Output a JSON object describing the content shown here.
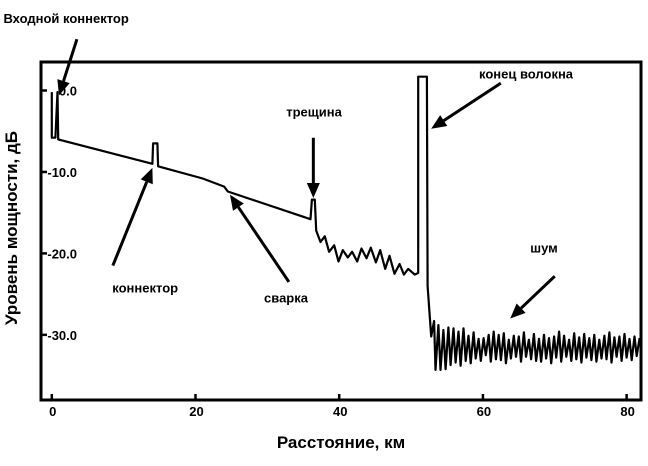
{
  "chart_data": {
    "type": "line",
    "xlabel": "Расстояние, км",
    "ylabel": "Уровень мощности, дБ",
    "xlim": [
      -1.5,
      82
    ],
    "ylim": [
      -38,
      3.5
    ],
    "x_ticks": [
      {
        "value": 0,
        "label": "0"
      },
      {
        "value": 20,
        "label": "20"
      },
      {
        "value": 40,
        "label": "40"
      },
      {
        "value": 60,
        "label": "60"
      },
      {
        "value": 80,
        "label": "80"
      }
    ],
    "y_ticks": [
      {
        "value": 0,
        "label": "0.0"
      },
      {
        "value": -10,
        "label": "-10.0"
      },
      {
        "value": -20,
        "label": "-20.0"
      },
      {
        "value": -30,
        "label": "-30.0"
      }
    ],
    "series": [
      {
        "points": [
          [
            0.0,
            -0.2
          ],
          [
            0.0,
            -5.8
          ],
          [
            0.5,
            -5.8
          ],
          [
            0.8,
            -0.2
          ],
          [
            0.9,
            -6.0
          ],
          [
            14.0,
            -9.0
          ],
          [
            14.1,
            -6.5
          ],
          [
            14.7,
            -6.5
          ],
          [
            14.8,
            -9.3
          ],
          [
            21.0,
            -10.8
          ],
          [
            24.0,
            -11.8
          ],
          [
            24.5,
            -12.4
          ],
          [
            36.0,
            -15.8
          ],
          [
            36.2,
            -13.4
          ],
          [
            36.6,
            -13.4
          ],
          [
            36.8,
            -17.2
          ],
          [
            37.4,
            -18.6
          ],
          [
            38.0,
            -17.9
          ],
          [
            38.6,
            -19.8
          ],
          [
            39.3,
            -19.0
          ],
          [
            39.9,
            -21.0
          ],
          [
            40.5,
            -19.6
          ],
          [
            41.2,
            -20.5
          ],
          [
            41.8,
            -19.8
          ],
          [
            42.5,
            -21.0
          ],
          [
            43.1,
            -19.4
          ],
          [
            43.8,
            -20.6
          ],
          [
            44.4,
            -19.3
          ],
          [
            45.1,
            -21.1
          ],
          [
            45.7,
            -19.6
          ],
          [
            46.4,
            -21.9
          ],
          [
            47.0,
            -20.3
          ],
          [
            47.7,
            -22.5
          ],
          [
            48.4,
            -21.3
          ],
          [
            49.0,
            -22.6
          ],
          [
            49.6,
            -21.9
          ],
          [
            50.5,
            -22.6
          ],
          [
            51.0,
            -22.4
          ],
          [
            51.0,
            1.7
          ],
          [
            52.2,
            1.7
          ],
          [
            52.3,
            -24.0
          ],
          [
            52.8,
            -30.2
          ],
          [
            53.2,
            -28.3
          ],
          [
            53.4,
            -34.3
          ],
          [
            53.8,
            -28.8
          ],
          [
            54.1,
            -34.3
          ],
          [
            54.5,
            -29.4
          ],
          [
            54.8,
            -34.2
          ],
          [
            55.2,
            -29.1
          ],
          [
            55.5,
            -33.7
          ],
          [
            55.9,
            -29.2
          ],
          [
            56.2,
            -33.4
          ],
          [
            56.6,
            -29.6
          ],
          [
            56.9,
            -33.8
          ],
          [
            57.3,
            -29.2
          ],
          [
            57.6,
            -33.2
          ],
          [
            58.0,
            -30.1
          ],
          [
            58.3,
            -33.5
          ],
          [
            58.7,
            -29.7
          ],
          [
            59.0,
            -32.9
          ],
          [
            59.4,
            -30.5
          ],
          [
            59.7,
            -33.2
          ],
          [
            60.1,
            -30.4
          ],
          [
            60.4,
            -32.5
          ],
          [
            60.8,
            -30.0
          ],
          [
            61.1,
            -33.3
          ],
          [
            61.5,
            -29.6
          ],
          [
            61.8,
            -33.0
          ],
          [
            62.2,
            -30.0
          ],
          [
            62.5,
            -33.1
          ],
          [
            62.9,
            -29.8
          ],
          [
            63.2,
            -33.5
          ],
          [
            63.6,
            -30.6
          ],
          [
            63.9,
            -32.9
          ],
          [
            64.3,
            -30.1
          ],
          [
            64.6,
            -32.7
          ],
          [
            65.0,
            -30.2
          ],
          [
            65.3,
            -33.3
          ],
          [
            65.7,
            -29.7
          ],
          [
            66.0,
            -32.7
          ],
          [
            66.4,
            -30.6
          ],
          [
            66.7,
            -33.0
          ],
          [
            67.1,
            -29.9
          ],
          [
            67.4,
            -33.2
          ],
          [
            67.8,
            -30.5
          ],
          [
            68.1,
            -33.3
          ],
          [
            68.5,
            -30.0
          ],
          [
            68.8,
            -32.9
          ],
          [
            69.2,
            -30.4
          ],
          [
            69.5,
            -33.5
          ],
          [
            69.9,
            -30.2
          ],
          [
            70.2,
            -32.8
          ],
          [
            70.6,
            -29.6
          ],
          [
            70.9,
            -33.3
          ],
          [
            71.3,
            -30.1
          ],
          [
            71.6,
            -32.7
          ],
          [
            72.0,
            -30.6
          ],
          [
            72.3,
            -33.2
          ],
          [
            72.7,
            -29.8
          ],
          [
            73.0,
            -33.0
          ],
          [
            73.4,
            -30.3
          ],
          [
            73.7,
            -33.4
          ],
          [
            74.1,
            -29.9
          ],
          [
            74.4,
            -32.8
          ],
          [
            74.8,
            -30.4
          ],
          [
            75.1,
            -33.1
          ],
          [
            75.5,
            -30.0
          ],
          [
            75.8,
            -33.3
          ],
          [
            76.2,
            -30.6
          ],
          [
            76.5,
            -32.9
          ],
          [
            76.9,
            -30.1
          ],
          [
            77.2,
            -33.0
          ],
          [
            77.6,
            -29.7
          ],
          [
            77.9,
            -33.4
          ],
          [
            78.3,
            -30.3
          ],
          [
            78.6,
            -32.7
          ],
          [
            79.0,
            -30.2
          ],
          [
            79.3,
            -33.2
          ],
          [
            79.7,
            -29.9
          ],
          [
            80.0,
            -32.8
          ],
          [
            80.4,
            -30.5
          ],
          [
            80.7,
            -33.1
          ],
          [
            81.1,
            -30.2
          ],
          [
            81.4,
            -32.6
          ],
          [
            81.8,
            -30.4
          ]
        ]
      }
    ],
    "annotations": [
      {
        "id": "input-connector",
        "text": "Входной коннектор",
        "label_at": [
          2.0,
          8.3
        ],
        "arrow_from": [
          3.5,
          6.3
        ],
        "arrow_to": [
          1.0,
          -0.6
        ]
      },
      {
        "id": "connector",
        "text": "коннектор",
        "label_at": [
          13.0,
          -24.8
        ],
        "arrow_from": [
          8.5,
          -21.5
        ],
        "arrow_to": [
          14.0,
          -9.5
        ]
      },
      {
        "id": "splice",
        "text": "сварка",
        "label_at": [
          32.6,
          -26.0
        ],
        "arrow_from": [
          33.0,
          -23.5
        ],
        "arrow_to": [
          24.8,
          -12.8
        ]
      },
      {
        "id": "crack",
        "text": "трещина",
        "label_at": [
          36.5,
          -3.2
        ],
        "arrow_from": [
          36.4,
          -5.8
        ],
        "arrow_to": [
          36.4,
          -13.2
        ]
      },
      {
        "id": "fiber-end",
        "text": "конец волокна",
        "label_at": [
          66.0,
          1.5
        ],
        "arrow_from": [
          62.5,
          0.9
        ],
        "arrow_to": [
          52.8,
          -4.7
        ]
      },
      {
        "id": "noise",
        "text": "шум",
        "label_at": [
          68.5,
          -19.9
        ],
        "arrow_from": [
          70.0,
          -22.8
        ],
        "arrow_to": [
          63.8,
          -28.0
        ]
      }
    ]
  }
}
